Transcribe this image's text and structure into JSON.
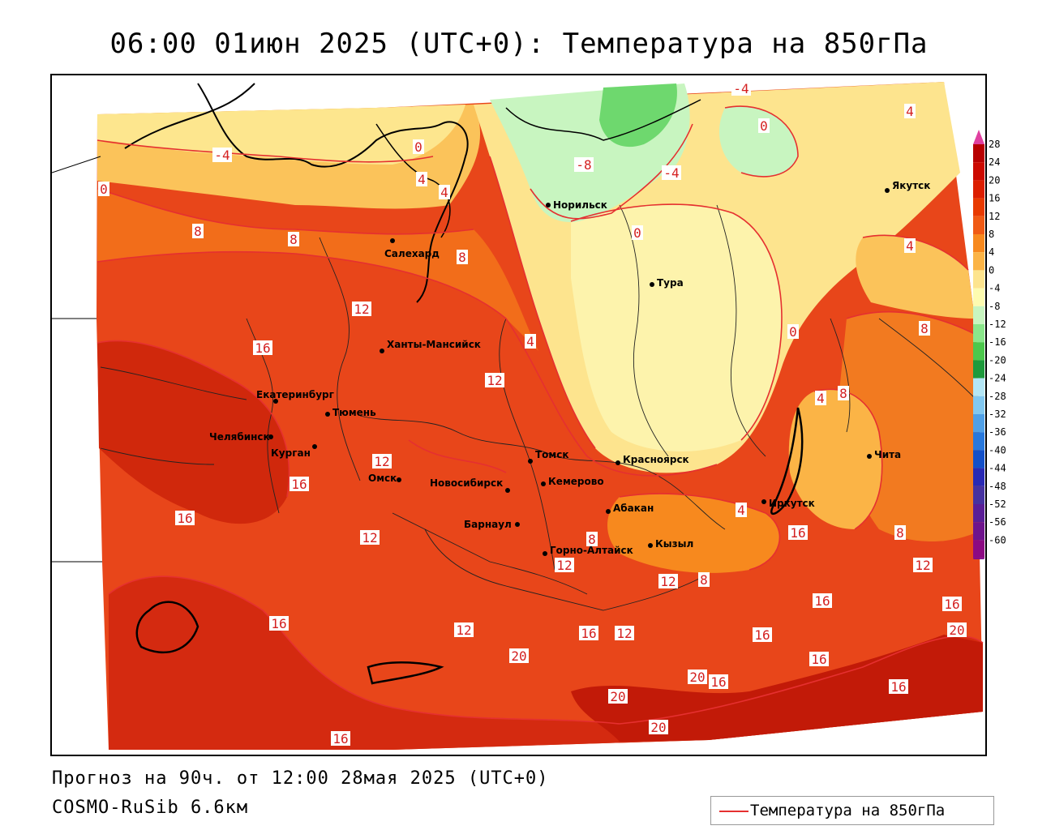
{
  "title": "06:00 01июн 2025 (UTC+0): Температура на 850гПа",
  "forecast_line": "Прогноз на 90ч. от 12:00 28мая 2025 (UTC+0)",
  "model_line": "COSMO-RuSib 6.6км",
  "legend": {
    "label": "Температура на 850гПа",
    "line_color": "#e53030"
  },
  "cities": [
    {
      "name": "Норильск"
    },
    {
      "name": "Якутск"
    },
    {
      "name": "Салехард"
    },
    {
      "name": "Тура"
    },
    {
      "name": "Ханты-Мансийск"
    },
    {
      "name": "Екатеринбург"
    },
    {
      "name": "Тюмень"
    },
    {
      "name": "Челябинск"
    },
    {
      "name": "Курган"
    },
    {
      "name": "Омск"
    },
    {
      "name": "Новосибирск"
    },
    {
      "name": "Томск"
    },
    {
      "name": "Кемерово"
    },
    {
      "name": "Красноярск"
    },
    {
      "name": "Барнаул"
    },
    {
      "name": "Абакан"
    },
    {
      "name": "Иркутск"
    },
    {
      "name": "Чита"
    },
    {
      "name": "Горно-Алтайск"
    },
    {
      "name": "Кызыл"
    }
  ],
  "contour_labels": [
    "-4",
    "4",
    "0",
    "0",
    "-4",
    "-8",
    "4",
    "-4",
    "0",
    "4",
    "8",
    "8",
    "8",
    "4",
    "0",
    "12",
    "4",
    "16",
    "12",
    "0",
    "4",
    "8",
    "8",
    "16",
    "12",
    "16",
    "12",
    "8",
    "4",
    "8",
    "16",
    "12",
    "12",
    "8",
    "12",
    "16",
    "16",
    "12",
    "16",
    "12",
    "16",
    "16",
    "20",
    "20",
    "16",
    "20",
    "16",
    "20",
    "20",
    "16",
    "16"
  ],
  "color_scale": {
    "labels": [
      "28",
      "24",
      "20",
      "16",
      "12",
      "8",
      "4",
      "0",
      "-4",
      "-8",
      "-12",
      "-16",
      "-20",
      "-24",
      "-28",
      "-32",
      "-36",
      "-40",
      "-44",
      "-48",
      "-52",
      "-56",
      "-60"
    ],
    "colors": [
      "#b80000",
      "#cc0a00",
      "#dc1e00",
      "#e83a00",
      "#f05a14",
      "#f7891e",
      "#fbb446",
      "#fde48e",
      "#fdfbb0",
      "#c8f5c0",
      "#8ae68a",
      "#4cc84c",
      "#1e9a3c",
      "#b4e6f5",
      "#82c8f0",
      "#50a0e6",
      "#2878dc",
      "#1450c8",
      "#2a2ab4",
      "#4632a0",
      "#5a1e96",
      "#6e148c",
      "#8c0a82"
    ]
  }
}
